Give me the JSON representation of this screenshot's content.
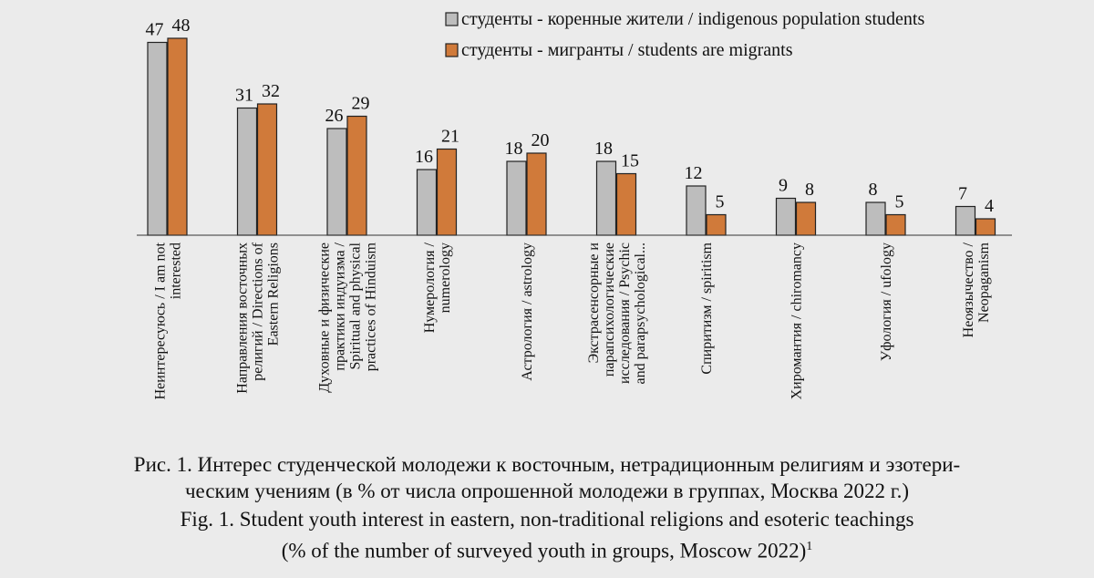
{
  "chart_data": {
    "type": "bar",
    "categories": [
      [
        "Неинтересуюсь / I am not",
        "interested"
      ],
      [
        "Направления восточных",
        "религий / Directions of",
        "Eastern Religions"
      ],
      [
        "Духовные и физические",
        "практики индуизма /",
        "Spiritual and physical",
        "practices of Hinduism"
      ],
      [
        "Нумерология /",
        "numerology"
      ],
      [
        "Астрология / astrology"
      ],
      [
        "Экстрасенсорные и",
        "парапсихологические",
        "исследования / Psychic",
        "and parapsychological..."
      ],
      [
        "Спиритизм / spiritism"
      ],
      [
        "Хиромантия / chiromancy"
      ],
      [
        "Уфология / ufology"
      ],
      [
        "Неоязычество /",
        "Neopaganism"
      ]
    ],
    "series": [
      {
        "name": "студенты - коренные жители / indigenous population students",
        "color": "#bdbdbd",
        "values": [
          47,
          31,
          26,
          16,
          18,
          18,
          12,
          9,
          8,
          7
        ]
      },
      {
        "name": "студенты - мигранты / students are migrants",
        "color": "#d07a3a",
        "values": [
          48,
          32,
          29,
          21,
          20,
          15,
          5,
          8,
          5,
          4
        ]
      }
    ],
    "ylim": [
      0,
      48
    ],
    "grid": false,
    "legend": "top-right",
    "data_labels": true
  },
  "caption": {
    "ru_line1": "Рис. 1. Интерес студенческой молодежи к восточным, нетрадиционным религиям и эзотери-",
    "ru_line2": "ческим учениям (в % от числа опрошенной молодежи в группах, Москва 2022 г.)",
    "en_line1": "Fig. 1. Student youth interest in eastern, non-traditional religions and esoteric teachings",
    "en_line2": "(% of the number of surveyed youth in groups, Moscow 2022)",
    "footnote_mark": "1"
  }
}
